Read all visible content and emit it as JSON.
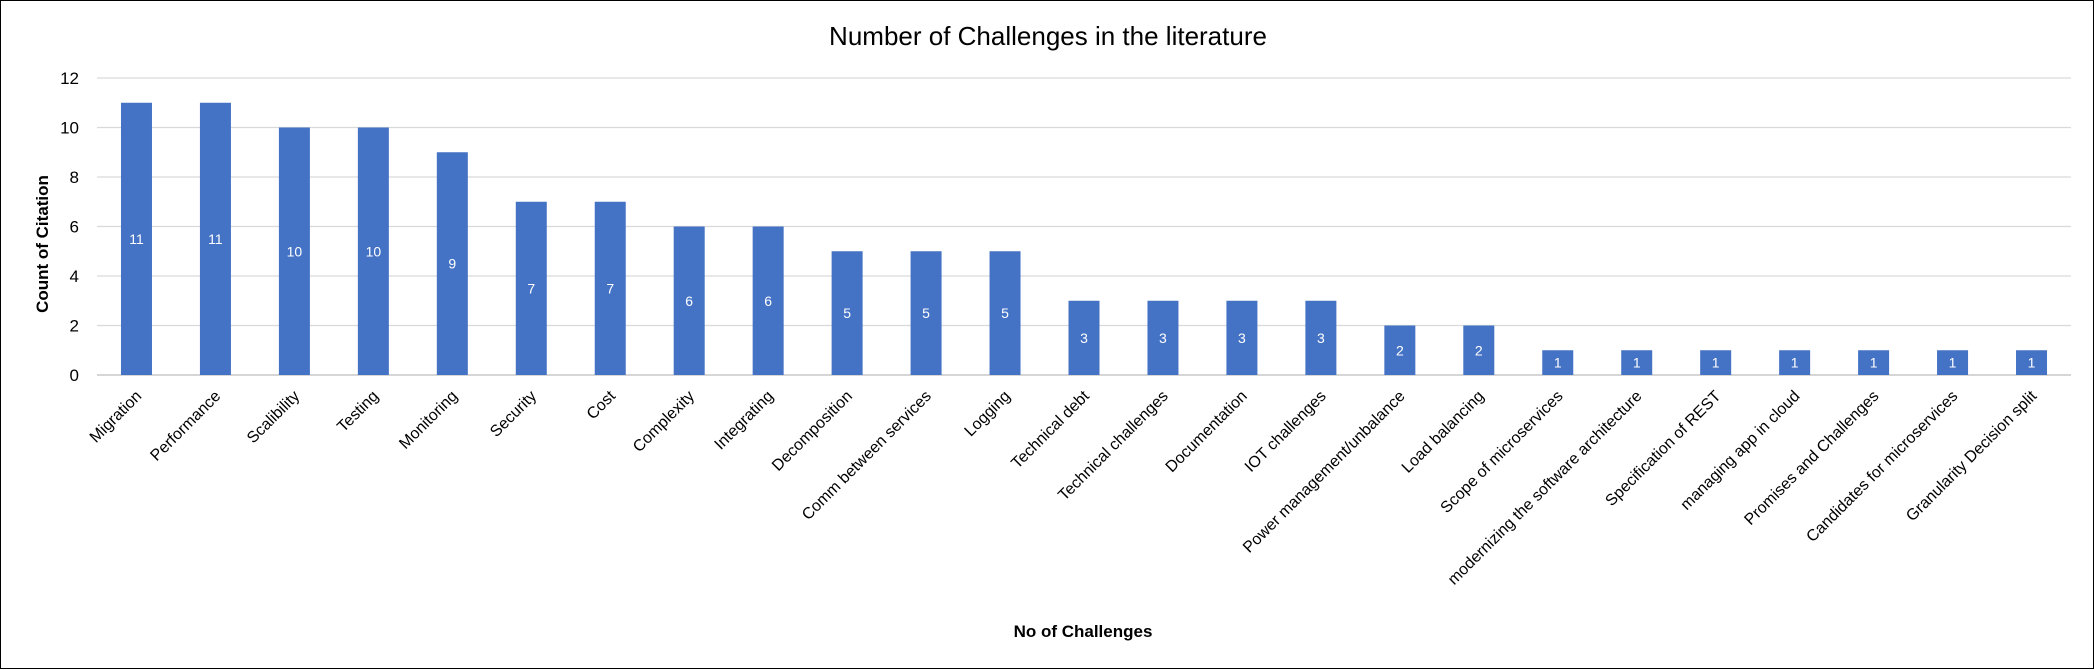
{
  "chart_data": {
    "type": "bar",
    "title": "Number of Challenges in the literature",
    "xlabel": "No of Challenges",
    "ylabel": "Count of Citation",
    "ylim": [
      0,
      12
    ],
    "yticks": [
      0,
      2,
      4,
      6,
      8,
      10,
      12
    ],
    "grid": true,
    "bar_color": "#4472c4",
    "categories": [
      "Migration",
      "Performance",
      "Scalibility",
      "Testing",
      "Monitoring",
      "Security",
      "Cost",
      "Complexity",
      "Integrating",
      "Decomposition",
      "Comm between services",
      "Logging",
      "Technical debt",
      "Technical challenges",
      "Documentation",
      "IOT challenges",
      "Power management/unbalance",
      "Load balancing",
      "Scope of microservices",
      "modernizing the software architecture",
      "Specification of REST",
      "managing app in cloud",
      "Promises and Challenges",
      "Candidates for microservices",
      "Granularity Decision split"
    ],
    "values": [
      11,
      11,
      10,
      10,
      9,
      7,
      7,
      6,
      6,
      5,
      5,
      5,
      3,
      3,
      3,
      3,
      2,
      2,
      1,
      1,
      1,
      1,
      1,
      1,
      1
    ]
  }
}
